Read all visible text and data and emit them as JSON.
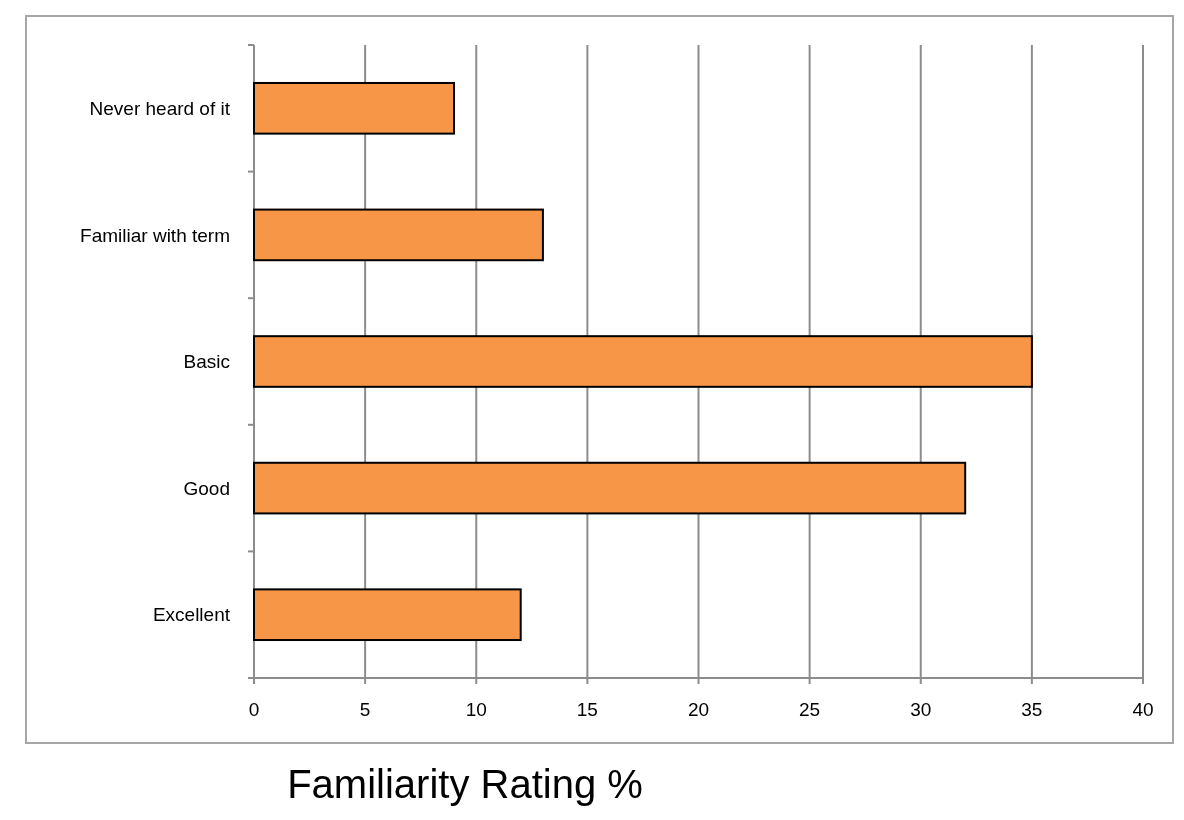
{
  "chart_data": {
    "type": "bar",
    "orientation": "horizontal",
    "xlabel": "Familiarity Rating %",
    "categories": [
      "Never heard of it",
      "Familiar with term",
      "Basic",
      "Good",
      "Excellent"
    ],
    "values": [
      9,
      13,
      35,
      32,
      12
    ],
    "color": "#f79646",
    "xlim": [
      0,
      40
    ],
    "xticks": [
      0,
      5,
      10,
      15,
      20,
      25,
      30,
      35,
      40
    ],
    "grid": "x"
  }
}
